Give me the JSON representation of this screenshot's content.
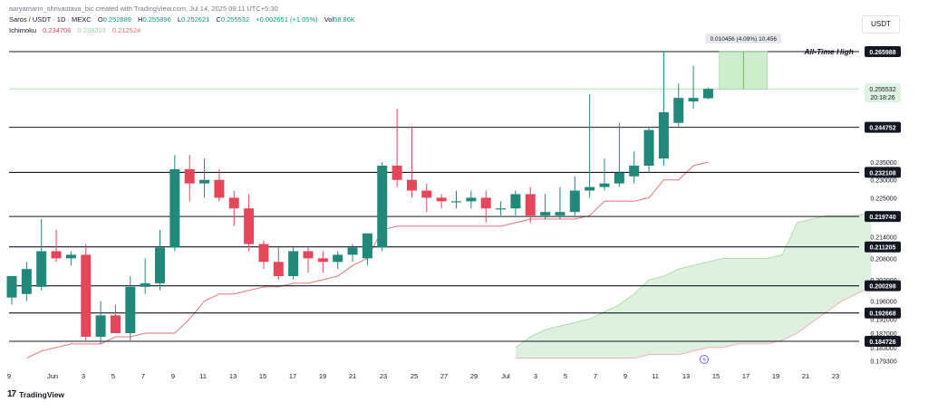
{
  "header": {
    "line1": "aaryamann_shrivastava_bic created with TradingView.com, Jul 14, 2025 09:11 UTC+5:30",
    "symbol": "Saros / USDT · 1D · MEXC",
    "open_label": "O",
    "open": "0.252889",
    "high_label": "H",
    "high": "0.255896",
    "low_label": "L",
    "low": "0.252621",
    "close_label": "C",
    "close": "0.255532",
    "change": "+0.002651 (+1.05%)",
    "vol_label": "Vol",
    "vol": "58.86K",
    "indicator": "Ichimoku",
    "ind_v1": "0.234706",
    "ind_v2": "0.238203",
    "ind_v3": "0.212524"
  },
  "currency": "USDT",
  "logo": "TradingView",
  "colors": {
    "up": "#22897a",
    "down": "#e5475a",
    "baseline": "#e57373",
    "cloud": "#c8e6c9",
    "cloud_edge": "#a5d6a7",
    "level": "#131722",
    "price_tag": "#dff3e2"
  },
  "chart_data": {
    "type": "candlestick",
    "title": "",
    "price_axis": {
      "ticks": [
        "0.235000",
        "0.230000",
        "0.225000",
        "0.214000",
        "0.208000",
        "0.202000",
        "0.196000",
        "0.191000",
        "0.187000",
        "0.183000",
        "0.179300"
      ]
    },
    "x_ticks": [
      "9",
      "Jun",
      "3",
      "5",
      "7",
      "9",
      "11",
      "13",
      "15",
      "17",
      "19",
      "21",
      "23",
      "25",
      "27",
      "29",
      "Jul",
      "3",
      "5",
      "7",
      "9",
      "11",
      "13",
      "15",
      "17",
      "19",
      "21",
      "23"
    ],
    "horizontal_levels": [
      "0.265988",
      "0.244752",
      "0.232108",
      "0.219740",
      "0.211205",
      "0.200298",
      "0.192668",
      "0.184726"
    ],
    "ath_label": "All-Time High",
    "current_price": "0.255532",
    "countdown": "20:18:26",
    "measure_label": "0.010456 (4.09%) 10,456",
    "candles": [
      {
        "o": 0.197,
        "h": 0.203,
        "l": 0.195,
        "c": 0.203
      },
      {
        "o": 0.198,
        "h": 0.207,
        "l": 0.196,
        "c": 0.205
      },
      {
        "o": 0.2,
        "h": 0.219,
        "l": 0.199,
        "c": 0.21
      },
      {
        "o": 0.21,
        "h": 0.216,
        "l": 0.207,
        "c": 0.208
      },
      {
        "o": 0.208,
        "h": 0.21,
        "l": 0.206,
        "c": 0.209
      },
      {
        "o": 0.209,
        "h": 0.212,
        "l": 0.185,
        "c": 0.186
      },
      {
        "o": 0.186,
        "h": 0.196,
        "l": 0.184,
        "c": 0.192
      },
      {
        "o": 0.192,
        "h": 0.195,
        "l": 0.187,
        "c": 0.187
      },
      {
        "o": 0.187,
        "h": 0.203,
        "l": 0.185,
        "c": 0.2
      },
      {
        "o": 0.2,
        "h": 0.208,
        "l": 0.198,
        "c": 0.201
      },
      {
        "o": 0.201,
        "h": 0.216,
        "l": 0.199,
        "c": 0.211
      },
      {
        "o": 0.211,
        "h": 0.237,
        "l": 0.21,
        "c": 0.233
      },
      {
        "o": 0.233,
        "h": 0.237,
        "l": 0.224,
        "c": 0.229
      },
      {
        "o": 0.229,
        "h": 0.236,
        "l": 0.225,
        "c": 0.23
      },
      {
        "o": 0.23,
        "h": 0.233,
        "l": 0.224,
        "c": 0.225
      },
      {
        "o": 0.225,
        "h": 0.227,
        "l": 0.217,
        "c": 0.222
      },
      {
        "o": 0.222,
        "h": 0.226,
        "l": 0.21,
        "c": 0.212
      },
      {
        "o": 0.212,
        "h": 0.213,
        "l": 0.205,
        "c": 0.207
      },
      {
        "o": 0.207,
        "h": 0.211,
        "l": 0.202,
        "c": 0.203
      },
      {
        "o": 0.203,
        "h": 0.211,
        "l": 0.202,
        "c": 0.21
      },
      {
        "o": 0.21,
        "h": 0.211,
        "l": 0.204,
        "c": 0.208
      },
      {
        "o": 0.208,
        "h": 0.21,
        "l": 0.204,
        "c": 0.207
      },
      {
        "o": 0.207,
        "h": 0.21,
        "l": 0.205,
        "c": 0.209
      },
      {
        "o": 0.209,
        "h": 0.212,
        "l": 0.207,
        "c": 0.211
      },
      {
        "o": 0.208,
        "h": 0.215,
        "l": 0.206,
        "c": 0.215
      },
      {
        "o": 0.211,
        "h": 0.235,
        "l": 0.21,
        "c": 0.234
      },
      {
        "o": 0.234,
        "h": 0.25,
        "l": 0.228,
        "c": 0.23
      },
      {
        "o": 0.23,
        "h": 0.245,
        "l": 0.225,
        "c": 0.227
      },
      {
        "o": 0.227,
        "h": 0.229,
        "l": 0.221,
        "c": 0.225
      },
      {
        "o": 0.225,
        "h": 0.226,
        "l": 0.222,
        "c": 0.224
      },
      {
        "o": 0.224,
        "h": 0.227,
        "l": 0.222,
        "c": 0.224
      },
      {
        "o": 0.224,
        "h": 0.227,
        "l": 0.222,
        "c": 0.225
      },
      {
        "o": 0.225,
        "h": 0.227,
        "l": 0.218,
        "c": 0.222
      },
      {
        "o": 0.222,
        "h": 0.224,
        "l": 0.22,
        "c": 0.222
      },
      {
        "o": 0.222,
        "h": 0.227,
        "l": 0.22,
        "c": 0.226
      },
      {
        "o": 0.226,
        "h": 0.228,
        "l": 0.218,
        "c": 0.22
      },
      {
        "o": 0.22,
        "h": 0.226,
        "l": 0.219,
        "c": 0.221
      },
      {
        "o": 0.22,
        "h": 0.228,
        "l": 0.219,
        "c": 0.221
      },
      {
        "o": 0.221,
        "h": 0.231,
        "l": 0.22,
        "c": 0.227
      },
      {
        "o": 0.227,
        "h": 0.254,
        "l": 0.225,
        "c": 0.228
      },
      {
        "o": 0.228,
        "h": 0.236,
        "l": 0.227,
        "c": 0.229
      },
      {
        "o": 0.229,
        "h": 0.246,
        "l": 0.228,
        "c": 0.232
      },
      {
        "o": 0.231,
        "h": 0.238,
        "l": 0.229,
        "c": 0.234
      },
      {
        "o": 0.234,
        "h": 0.245,
        "l": 0.232,
        "c": 0.244
      },
      {
        "o": 0.236,
        "h": 0.266,
        "l": 0.234,
        "c": 0.249
      },
      {
        "o": 0.246,
        "h": 0.257,
        "l": 0.245,
        "c": 0.253
      },
      {
        "o": 0.252,
        "h": 0.262,
        "l": 0.25,
        "c": 0.253
      },
      {
        "o": 0.252889,
        "h": 0.255896,
        "l": 0.252621,
        "c": 0.255532
      }
    ],
    "baseline": [
      0.18,
      0.182,
      0.183,
      0.184,
      0.184,
      0.184,
      0.186,
      0.186,
      0.187,
      0.187,
      0.187,
      0.191,
      0.196,
      0.198,
      0.198,
      0.199,
      0.2,
      0.2,
      0.201,
      0.201,
      0.202,
      0.203,
      0.206,
      0.208,
      0.216,
      0.217,
      0.217,
      0.217,
      0.217,
      0.217,
      0.217,
      0.217,
      0.217,
      0.218,
      0.219,
      0.219,
      0.219,
      0.219,
      0.22,
      0.224,
      0.224,
      0.224,
      0.225,
      0.23,
      0.23,
      0.234,
      0.235
    ],
    "cloud_span_a": [
      0.183,
      0.186,
      0.188,
      0.189,
      0.19,
      0.191,
      0.193,
      0.195,
      0.198,
      0.202,
      0.203,
      0.205,
      0.206,
      0.207,
      0.208,
      0.208,
      0.208,
      0.208,
      0.209,
      0.218,
      0.219,
      0.22,
      0.22,
      0.22,
      0.221
    ],
    "cloud_span_b": [
      0.18,
      0.18,
      0.18,
      0.18,
      0.18,
      0.18,
      0.18,
      0.18,
      0.18,
      0.181,
      0.181,
      0.181,
      0.182,
      0.183,
      0.183,
      0.184,
      0.184,
      0.184,
      0.185,
      0.187,
      0.19,
      0.193,
      0.196,
      0.198,
      0.2
    ]
  }
}
